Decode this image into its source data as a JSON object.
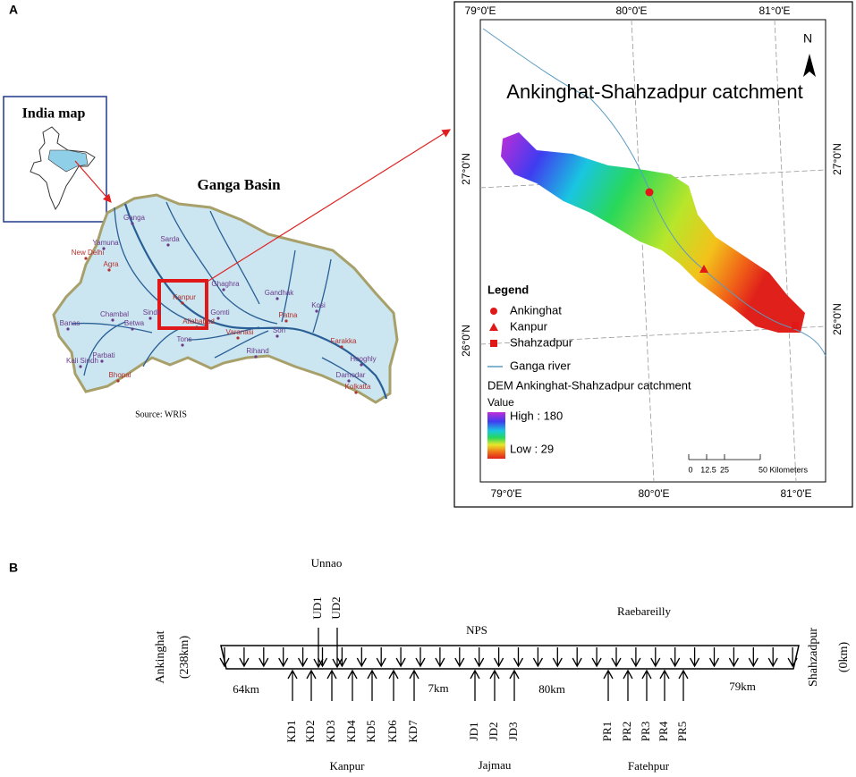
{
  "panel_a": {
    "label": "A",
    "india_inset": {
      "title": "India map"
    },
    "ganga_basin": {
      "title": "Ganga Basin",
      "source": "Source: WRIS",
      "labels": [
        "New Delhi",
        "Agra",
        "Yamuna",
        "Ganga",
        "Sarda",
        "Ghaghra",
        "Gandhak",
        "Kosi",
        "Banas",
        "Chambal",
        "Betwa",
        "Sindh",
        "Kali Sindh",
        "Parbati",
        "Bhopal",
        "Tons",
        "Gomti",
        "Allahabad",
        "Varanasi",
        "Patna",
        "Son",
        "Rihand",
        "Farakka",
        "Damodar",
        "Hooghly",
        "Kolkatta",
        "Kanpur"
      ]
    },
    "catchment_map": {
      "title": "Ankinghat-Shahzadpur catchment",
      "north": "N",
      "top_lon_labels": [
        "79°0'E",
        "80°0'E",
        "81°0'E"
      ],
      "bottom_lon_labels": [
        "79°0'E",
        "80°0'E",
        "81°0'E"
      ],
      "left_lat_labels": [
        "27°0'N",
        "26°0'N"
      ],
      "right_lat_labels": [
        "27°0'N",
        "26°0'N"
      ],
      "legend": {
        "title": "Legend",
        "items": [
          "Ankinghat",
          "Kanpur",
          "Shahzadpur",
          "Ganga river"
        ],
        "dem_title": "DEM Ankinghat-Shahzadpur catchment",
        "value_title": "Value",
        "high": "High : 180",
        "low": "Low : 29"
      },
      "scale_labels": [
        "0",
        "12.5",
        "25",
        "50 Kilometers"
      ]
    }
  },
  "panel_b": {
    "label": "B",
    "upstream": "Ankinghat",
    "upstream_distance": "(238km)",
    "downstream": "Shahzadpur",
    "downstream_distance": "(0km)",
    "top_group": "Unnao",
    "top_drains": [
      "UD1",
      "UD2"
    ],
    "nps": "NPS",
    "raebareilly": "Raebareilly",
    "segment_distances": [
      "64km",
      "7km",
      "80km",
      "79km"
    ],
    "groups": [
      {
        "name": "Kanpur",
        "drains": [
          "KD1",
          "KD2",
          "KD3",
          "KD4",
          "KD5",
          "KD6",
          "KD7"
        ]
      },
      {
        "name": "Jajmau",
        "drains": [
          "JD1",
          "JD2",
          "JD3"
        ]
      },
      {
        "name": "Fatehpur",
        "drains": [
          "PR1",
          "PR2",
          "PR3",
          "PR4",
          "PR5"
        ]
      }
    ]
  }
}
